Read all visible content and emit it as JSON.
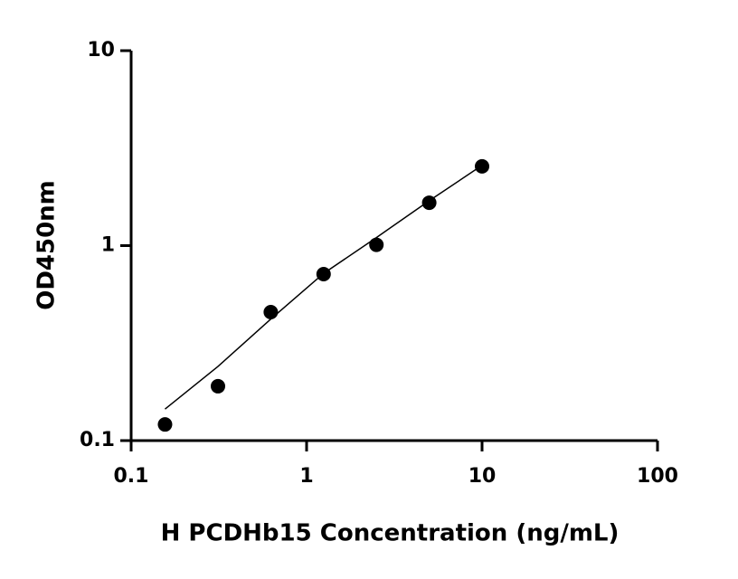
{
  "chart_data": {
    "type": "scatter",
    "x_label": "H PCDHb15 Concentration (ng/mL)",
    "y_label": "OD450nm",
    "x_scale": "log",
    "y_scale": "log",
    "xlim": [
      0.1,
      100
    ],
    "xticks": [
      0.1,
      1,
      10,
      100
    ],
    "ylim": [
      0.1,
      10
    ],
    "yticks": [
      0.1,
      1,
      10
    ],
    "color": "#000000",
    "x": [
      0.156,
      0.3125,
      0.625,
      1.25,
      2.5,
      5,
      10
    ],
    "values": [
      0.121,
      0.19,
      0.456,
      0.714,
      1.01,
      1.66,
      2.55
    ],
    "fit": {
      "x": [
        0.156,
        0.3125,
        0.625,
        1.25,
        2.5,
        5,
        10
      ],
      "values": [
        0.145,
        0.24,
        0.42,
        0.72,
        1.1,
        1.7,
        2.58
      ]
    }
  }
}
